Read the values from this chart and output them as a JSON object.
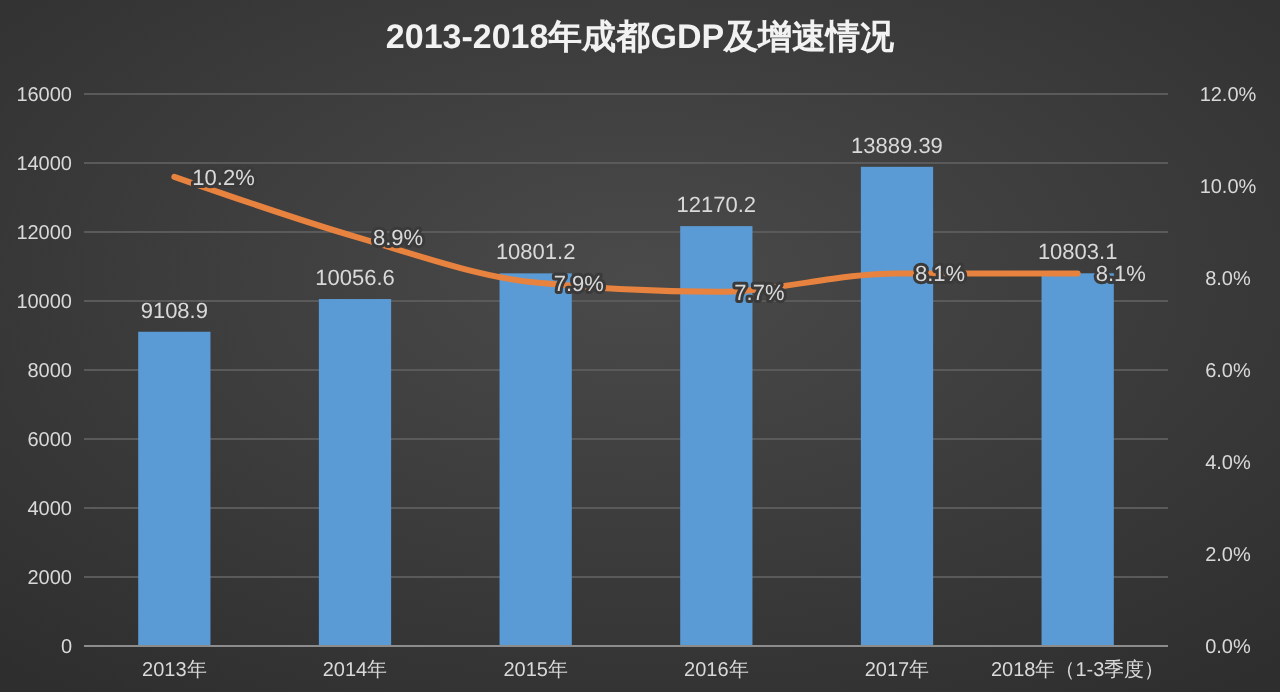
{
  "chart_data": {
    "type": "bar",
    "title": "2013-2018年成都GDP及增速情况",
    "categories": [
      "2013年",
      "2014年",
      "2015年",
      "2016年",
      "2017年",
      "2018年（1-3季度）"
    ],
    "series": [
      {
        "color": "#5b9bd5",
        "values": [
          9108.9,
          10056.6,
          10801.2,
          12170.2,
          13889.39,
          10803.1
        ],
        "value_labels": [
          "9108.9",
          "10056.6",
          "10801.2",
          "12170.2",
          "13889.39",
          "10803.1"
        ]
      },
      {
        "type": "line",
        "axis": "y2",
        "color": "#e8823f",
        "values": [
          10.2,
          8.9,
          7.9,
          7.7,
          8.1,
          8.1
        ],
        "value_labels": [
          "10.2%",
          "8.9%",
          "7.9%",
          "7.7%",
          "8.1%",
          "8.1%"
        ]
      }
    ],
    "ylim": [
      0,
      16000
    ],
    "yticks": [
      0,
      2000,
      4000,
      6000,
      8000,
      10000,
      12000,
      14000,
      16000
    ],
    "y2lim": [
      0,
      12
    ],
    "y2ticks": [
      {
        "value": 0,
        "label": "0.0%"
      },
      {
        "value": 2,
        "label": "2.0%"
      },
      {
        "value": 4,
        "label": "4.0%"
      },
      {
        "value": 6,
        "label": "6.0%"
      },
      {
        "value": 8,
        "label": "8.0%"
      },
      {
        "value": 10,
        "label": "10.0%"
      },
      {
        "value": 12,
        "label": "12.0%"
      }
    ],
    "grid": "y",
    "marker": "none",
    "line_style": "solid"
  }
}
